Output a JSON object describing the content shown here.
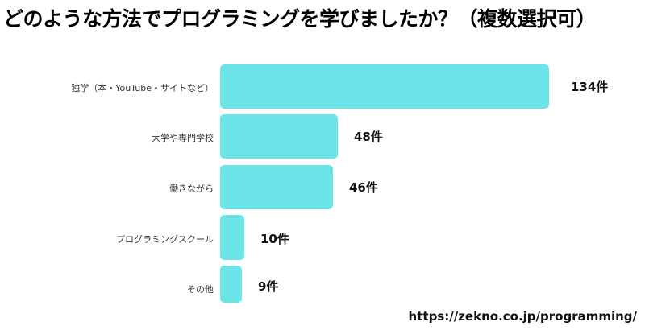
{
  "chart_data": {
    "type": "bar",
    "orientation": "horizontal",
    "title": "どのような方法でプログラミングを学びましたか？（複数選択可）",
    "categories": [
      "独学（本・YouTube・サイトなど）",
      "大学や専門学校",
      "働きながら",
      "プログラミングスクール",
      "その他"
    ],
    "values": [
      134,
      48,
      46,
      10,
      9
    ],
    "value_labels": [
      "134件",
      "48件",
      "46件",
      "10件",
      "9件"
    ],
    "unit": "件",
    "bar_color": "#6be5e8",
    "xlabel": "",
    "ylabel": "",
    "grid": false,
    "legend": null,
    "source": "https://zekno.co.jp/programming/"
  },
  "title": "どのような方法でプログラミングを学びましたか？（複数選択可）",
  "bars": [
    {
      "label": "独学（本・YouTube・サイトなど）",
      "value_label": "134件"
    },
    {
      "label": "大学や専門学校",
      "value_label": "48件"
    },
    {
      "label": "働きながら",
      "value_label": "46件"
    },
    {
      "label": "プログラミングスクール",
      "value_label": "10件"
    },
    {
      "label": "その他",
      "value_label": "9件"
    }
  ],
  "source": "https://zekno.co.jp/programming/"
}
